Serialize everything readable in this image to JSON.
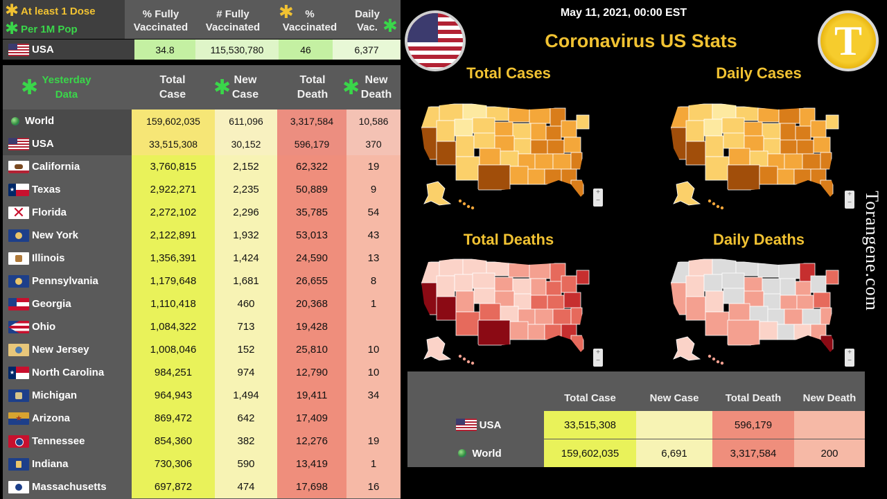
{
  "vaccine_header": {
    "legend_dose": "At least 1 Dose",
    "legend_pop": "Per 1M Pop",
    "col_pct_fully": "% Fully Vaccinated",
    "col_num_fully": "# Fully Vaccinated",
    "col_pct": "% Vaccinated",
    "col_daily": "Daily Vac."
  },
  "vaccine_row": {
    "name": "USA",
    "pct_fully": "34.8",
    "num_fully": "115,530,780",
    "pct": "46",
    "daily": "6,377"
  },
  "main_table": {
    "header_yesterday": "Yesterday Data",
    "col_total_case": "Total Case",
    "col_new_case": "New Case",
    "col_total_death": "Total Death",
    "col_new_death": "New Death",
    "rows": [
      {
        "name": "World",
        "flag": "globe-icon",
        "total_case": "159,602,035",
        "new_case": "611,096",
        "total_death": "3,317,584",
        "new_death": "10,586"
      },
      {
        "name": "USA",
        "flag": "usa-flag-icon",
        "total_case": "33,515,308",
        "new_case": "30,152",
        "total_death": "596,179",
        "new_death": "370"
      },
      {
        "name": "California",
        "flag": "california-flag-icon",
        "total_case": "3,760,815",
        "new_case": "2,152",
        "total_death": "62,322",
        "new_death": "19"
      },
      {
        "name": "Texas",
        "flag": "texas-flag-icon",
        "total_case": "2,922,271",
        "new_case": "2,235",
        "total_death": "50,889",
        "new_death": "9"
      },
      {
        "name": "Florida",
        "flag": "florida-flag-icon",
        "total_case": "2,272,102",
        "new_case": "2,296",
        "total_death": "35,785",
        "new_death": "54"
      },
      {
        "name": "New York",
        "flag": "new-york-flag-icon",
        "total_case": "2,122,891",
        "new_case": "1,932",
        "total_death": "53,013",
        "new_death": "43"
      },
      {
        "name": "Illinois",
        "flag": "illinois-flag-icon",
        "total_case": "1,356,391",
        "new_case": "1,424",
        "total_death": "24,590",
        "new_death": "13"
      },
      {
        "name": "Pennsylvania",
        "flag": "pennsylvania-flag-icon",
        "total_case": "1,179,648",
        "new_case": "1,681",
        "total_death": "26,655",
        "new_death": "8"
      },
      {
        "name": "Georgia",
        "flag": "georgia-flag-icon",
        "total_case": "1,110,418",
        "new_case": "460",
        "total_death": "20,368",
        "new_death": "1"
      },
      {
        "name": "Ohio",
        "flag": "ohio-flag-icon",
        "total_case": "1,084,322",
        "new_case": "713",
        "total_death": "19,428",
        "new_death": ""
      },
      {
        "name": "New Jersey",
        "flag": "new-jersey-flag-icon",
        "total_case": "1,008,046",
        "new_case": "152",
        "total_death": "25,810",
        "new_death": "10"
      },
      {
        "name": "North Carolina",
        "flag": "north-carolina-flag-icon",
        "total_case": "984,251",
        "new_case": "974",
        "total_death": "12,790",
        "new_death": "10"
      },
      {
        "name": "Michigan",
        "flag": "michigan-flag-icon",
        "total_case": "964,943",
        "new_case": "1,494",
        "total_death": "19,411",
        "new_death": "34"
      },
      {
        "name": "Arizona",
        "flag": "arizona-flag-icon",
        "total_case": "869,472",
        "new_case": "642",
        "total_death": "17,409",
        "new_death": ""
      },
      {
        "name": "Tennessee",
        "flag": "tennessee-flag-icon",
        "total_case": "854,360",
        "new_case": "382",
        "total_death": "12,276",
        "new_death": "19"
      },
      {
        "name": "Indiana",
        "flag": "indiana-flag-icon",
        "total_case": "730,306",
        "new_case": "590",
        "total_death": "13,419",
        "new_death": "1"
      },
      {
        "name": "Massachusetts",
        "flag": "massachusetts-flag-icon",
        "total_case": "697,872",
        "new_case": "474",
        "total_death": "17,698",
        "new_death": "16"
      }
    ]
  },
  "header": {
    "dateline": "May 11, 2021, 00:00 EST",
    "title": "Coronavirus US Stats",
    "logo_letter": "T",
    "watermark": "Torangene.com"
  },
  "maps": {
    "total_cases_title": "Total Cases",
    "daily_cases_title": "Daily Cases",
    "total_deaths_title": "Total Deaths",
    "daily_deaths_title": "Daily Deaths",
    "zoom_in": "+",
    "zoom_out": "−",
    "cases_colors": [
      "#fde9a0",
      "#fbd06a",
      "#f4a73a",
      "#d97d1a",
      "#a14e0a"
    ],
    "deaths_colors": [
      "#fbd3c8",
      "#f4a090",
      "#e66a5c",
      "#c62f2f",
      "#8b0a14"
    ],
    "no_data_color": "#dcdcdc"
  },
  "summary": {
    "col_total_case": "Total Case",
    "col_new_case": "New Case",
    "col_total_death": "Total Death",
    "col_new_death": "New Death",
    "rows": [
      {
        "name": "USA",
        "flag": "usa-flag-icon",
        "total_case": "33,515,308",
        "new_case": "",
        "total_death": "596,179",
        "new_death": ""
      },
      {
        "name": "World",
        "flag": "globe-icon",
        "total_case": "159,602,035",
        "new_case": "6,691",
        "total_death": "3,317,584",
        "new_death": "200"
      }
    ]
  },
  "colors": {
    "accent_gold": "#f1c232",
    "accent_green": "#3ad64a",
    "total_case_cell": "#e9f25a",
    "new_case_cell": "#f7f3b4",
    "total_death_cell": "#ef8e7c",
    "new_death_cell": "#f6b9a6"
  }
}
